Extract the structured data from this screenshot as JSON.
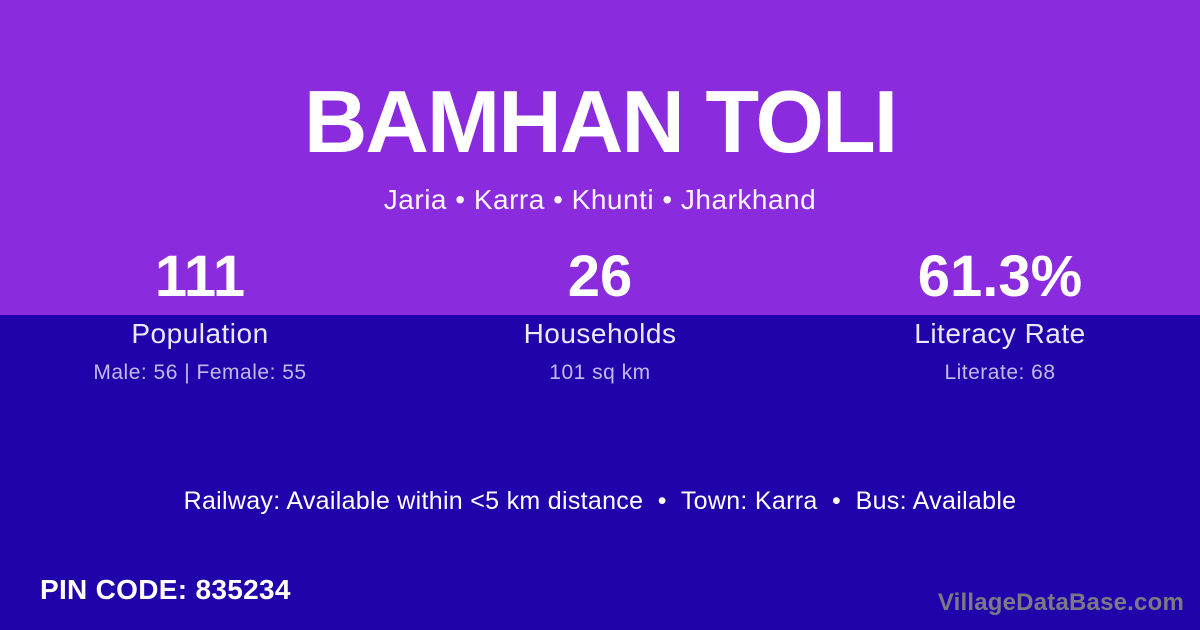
{
  "village": {
    "title": "BAMHAN TOLI",
    "location_breadcrumb": "Jaria • Karra • Khunti • Jharkhand"
  },
  "stats": [
    {
      "value": "111",
      "label": "Population",
      "detail": "Male: 56 | Female: 55"
    },
    {
      "value": "26",
      "label": "Households",
      "detail": "101 sq km"
    },
    {
      "value": "61.3%",
      "label": "Literacy Rate",
      "detail": "Literate: 68"
    }
  ],
  "transport_line": "Railway: Available within <5 km distance  •  Town: Karra  •  Bus: Available",
  "pin_code_label": "PIN CODE: 835234",
  "watermark": "VillageDataBase.com",
  "colors": {
    "top_background": "#8B2BDE",
    "bottom_background": "#2103AB",
    "stat_label": "#EDE8FA",
    "stat_detail": "#C3B9EA",
    "watermark_gray": "#7B7A84"
  }
}
